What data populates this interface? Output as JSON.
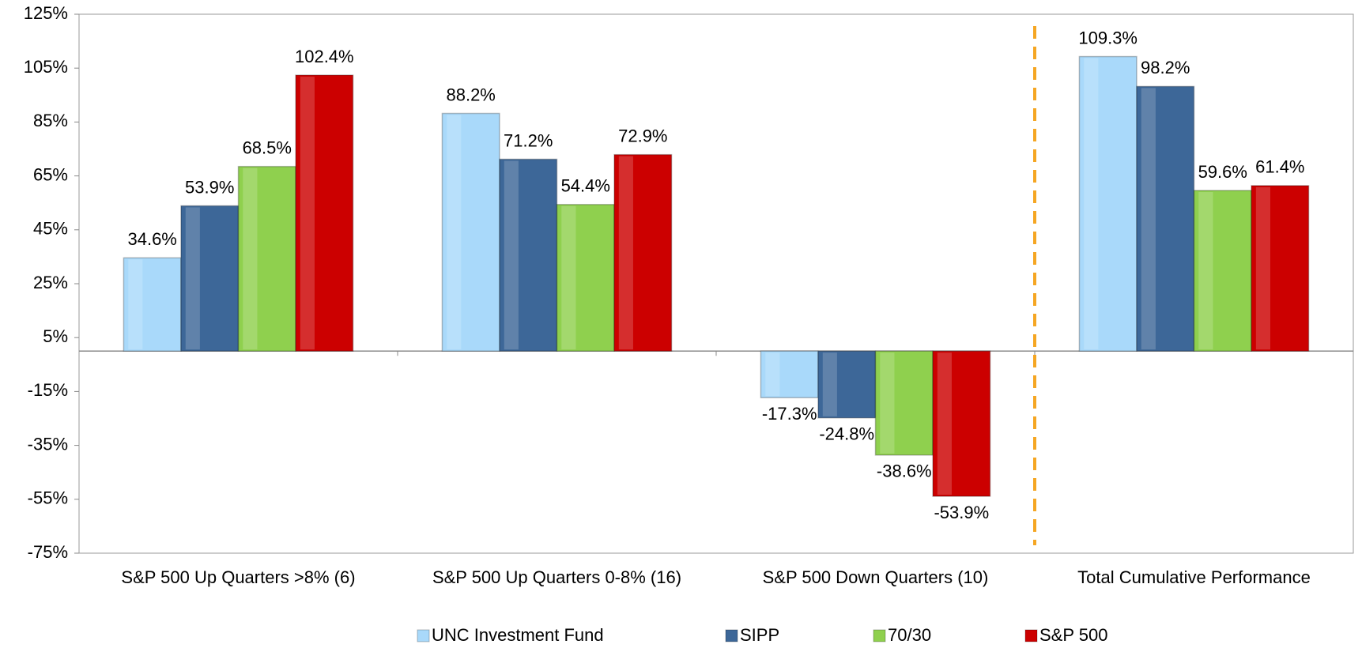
{
  "chart_data": {
    "type": "bar",
    "categories": [
      "S&P 500 Up Quarters >8% (6)",
      "S&P 500 Up Quarters 0-8% (16)",
      "S&P 500 Down Quarters (10)",
      "Total Cumulative Performance"
    ],
    "series": [
      {
        "name": "UNC Investment Fund",
        "color": "#a9d9fa",
        "values": [
          34.6,
          88.2,
          -17.3,
          109.3
        ],
        "value_labels": [
          "34.6%",
          "88.2%",
          "-17.3%",
          "109.3%"
        ]
      },
      {
        "name": "SIPP",
        "color": "#3d6798",
        "values": [
          53.9,
          71.2,
          -24.8,
          98.2
        ],
        "value_labels": [
          "53.9%",
          "71.2%",
          "-24.8%",
          "98.2%"
        ]
      },
      {
        "name": "70/30",
        "color": "#8fd04e",
        "values": [
          68.5,
          54.4,
          -38.6,
          59.6
        ],
        "value_labels": [
          "68.5%",
          "54.4%",
          "-38.6%",
          "59.6%"
        ]
      },
      {
        "name": "S&P 500",
        "color": "#cc0000",
        "values": [
          102.4,
          72.9,
          -53.9,
          61.4
        ],
        "value_labels": [
          "102.4%",
          "72.9%",
          "-53.9%",
          "61.4%"
        ]
      }
    ],
    "ylim": [
      -75,
      125
    ],
    "yticks": [
      {
        "value": -75,
        "label": "-75%"
      },
      {
        "value": -55,
        "label": "-55%"
      },
      {
        "value": -35,
        "label": "-35%"
      },
      {
        "value": -15,
        "label": "-15%"
      },
      {
        "value": 5,
        "label": "5%"
      },
      {
        "value": 25,
        "label": "25%"
      },
      {
        "value": 45,
        "label": "45%"
      },
      {
        "value": 65,
        "label": "65%"
      },
      {
        "value": 85,
        "label": "85%"
      },
      {
        "value": 105,
        "label": "105%"
      },
      {
        "value": 125,
        "label": "125%"
      }
    ],
    "legend": "bottom"
  }
}
